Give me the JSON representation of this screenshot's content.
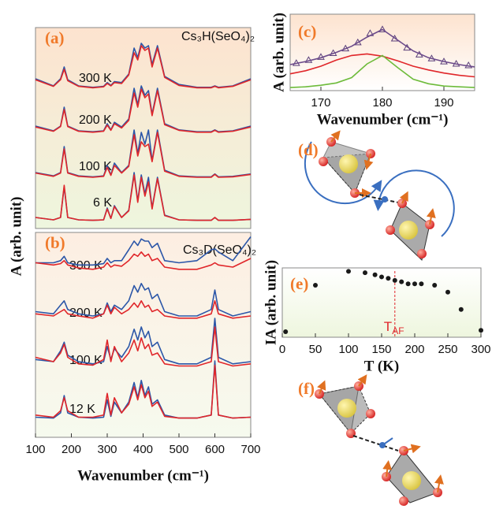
{
  "chart_data": [
    {
      "type": "line",
      "label": "(a)",
      "annotation": "Cs₃H(SeO₄)₂",
      "ylabel": "A (arb. unit)",
      "xlim": [
        100,
        700
      ],
      "x": [
        100,
        150,
        170,
        180,
        190,
        220,
        260,
        290,
        300,
        310,
        320,
        340,
        360,
        375,
        385,
        395,
        405,
        415,
        425,
        440,
        460,
        500,
        550,
        590,
        600,
        610,
        650,
        700
      ],
      "groups": [
        {
          "label": "300 K",
          "series": [
            {
              "color": "#2b56a8",
              "values": [
                0.3,
                0.15,
                0.3,
                0.55,
                0.28,
                0.15,
                0.12,
                0.14,
                0.22,
                0.16,
                0.24,
                0.22,
                0.4,
                0.95,
                0.75,
                1.05,
                0.95,
                1.0,
                0.6,
                1.0,
                0.35,
                0.18,
                0.12,
                0.12,
                0.15,
                0.12,
                0.15,
                0.3
              ]
            },
            {
              "color": "#e0262a",
              "values": [
                0.28,
                0.14,
                0.28,
                0.5,
                0.26,
                0.14,
                0.11,
                0.13,
                0.2,
                0.15,
                0.22,
                0.2,
                0.38,
                0.85,
                0.7,
                1.0,
                0.9,
                0.95,
                0.55,
                0.95,
                0.33,
                0.16,
                0.11,
                0.11,
                0.14,
                0.11,
                0.14,
                0.28
              ]
            }
          ]
        },
        {
          "label": "200 K",
          "series": [
            {
              "color": "#2b56a8",
              "values": [
                0.2,
                0.1,
                0.2,
                0.6,
                0.2,
                0.1,
                0.08,
                0.1,
                0.25,
                0.12,
                0.28,
                0.18,
                0.35,
                1.0,
                0.65,
                1.05,
                0.85,
                0.95,
                0.45,
                1.0,
                0.25,
                0.12,
                0.08,
                0.08,
                0.12,
                0.08,
                0.1,
                0.2
              ]
            },
            {
              "color": "#e0262a",
              "values": [
                0.18,
                0.09,
                0.19,
                0.55,
                0.19,
                0.09,
                0.07,
                0.09,
                0.22,
                0.11,
                0.25,
                0.16,
                0.32,
                0.9,
                0.6,
                0.98,
                0.8,
                0.88,
                0.42,
                0.95,
                0.23,
                0.11,
                0.07,
                0.07,
                0.11,
                0.07,
                0.09,
                0.18
              ]
            }
          ]
        },
        {
          "label": "100 K",
          "series": [
            {
              "color": "#2b56a8",
              "values": [
                0.15,
                0.08,
                0.15,
                0.7,
                0.15,
                0.08,
                0.06,
                0.08,
                0.3,
                0.1,
                0.35,
                0.15,
                0.3,
                1.05,
                0.55,
                1.0,
                0.75,
                1.05,
                0.4,
                1.05,
                0.2,
                0.08,
                0.06,
                0.06,
                0.12,
                0.06,
                0.07,
                0.12
              ]
            },
            {
              "color": "#e0262a",
              "values": [
                0.14,
                0.07,
                0.14,
                0.65,
                0.14,
                0.07,
                0.05,
                0.07,
                0.26,
                0.09,
                0.3,
                0.14,
                0.28,
                0.95,
                0.5,
                0.8,
                0.7,
                0.75,
                0.38,
                1.0,
                0.18,
                0.07,
                0.05,
                0.05,
                0.11,
                0.05,
                0.06,
                0.11
              ]
            }
          ]
        },
        {
          "label": "6 K",
          "series": [
            {
              "color": "#2b56a8",
              "values": [
                0.1,
                0.05,
                0.1,
                0.75,
                0.1,
                0.05,
                0.04,
                0.05,
                0.3,
                0.08,
                0.35,
                0.1,
                0.25,
                1.05,
                0.45,
                1.0,
                0.6,
                0.95,
                0.3,
                0.95,
                0.15,
                0.05,
                0.04,
                0.04,
                0.1,
                0.04,
                0.04,
                0.06
              ]
            },
            {
              "color": "#e0262a",
              "values": [
                0.1,
                0.05,
                0.1,
                0.78,
                0.1,
                0.05,
                0.04,
                0.05,
                0.28,
                0.08,
                0.33,
                0.1,
                0.24,
                1.0,
                0.42,
                0.95,
                0.55,
                0.85,
                0.28,
                0.92,
                0.14,
                0.05,
                0.04,
                0.04,
                0.1,
                0.04,
                0.04,
                0.06
              ]
            }
          ]
        }
      ]
    },
    {
      "type": "line",
      "label": "(b)",
      "annotation": "Cs₃D(SeO₄)₂",
      "xlabel": "Wavenumber (cm⁻¹)",
      "xlim": [
        100,
        700
      ],
      "xticks": [
        100,
        200,
        300,
        400,
        500,
        600,
        700
      ],
      "x": [
        100,
        150,
        170,
        180,
        190,
        220,
        260,
        290,
        300,
        310,
        320,
        340,
        360,
        375,
        385,
        395,
        405,
        415,
        425,
        440,
        460,
        500,
        550,
        590,
        600,
        610,
        650,
        700
      ],
      "groups": [
        {
          "label": "300 K",
          "series": [
            {
              "color": "#2b56a8",
              "values": [
                0.3,
                0.3,
                0.35,
                0.45,
                0.3,
                0.25,
                0.25,
                0.28,
                0.4,
                0.3,
                0.35,
                0.35,
                0.6,
                0.8,
                0.7,
                0.85,
                0.8,
                0.8,
                0.65,
                0.75,
                0.35,
                0.3,
                0.35,
                0.6,
                0.62,
                0.55,
                0.35,
                0.9
              ]
            },
            {
              "color": "#e0262a",
              "values": [
                0.3,
                0.25,
                0.28,
                0.35,
                0.25,
                0.18,
                0.15,
                0.2,
                0.3,
                0.2,
                0.25,
                0.22,
                0.35,
                0.5,
                0.45,
                0.55,
                0.45,
                0.5,
                0.35,
                0.4,
                0.2,
                0.15,
                0.15,
                0.25,
                0.3,
                0.25,
                0.2,
                0.4
              ]
            }
          ]
        },
        {
          "label": "200 K",
          "series": [
            {
              "color": "#2b56a8",
              "values": [
                0.3,
                0.25,
                0.45,
                0.55,
                0.35,
                0.25,
                0.2,
                0.25,
                0.5,
                0.3,
                0.45,
                0.35,
                0.55,
                0.9,
                0.75,
                0.95,
                0.8,
                0.85,
                0.6,
                0.7,
                0.3,
                0.2,
                0.2,
                0.35,
                0.8,
                0.35,
                0.2,
                0.3
              ]
            },
            {
              "color": "#e0262a",
              "values": [
                0.25,
                0.2,
                0.3,
                0.35,
                0.25,
                0.2,
                0.15,
                0.25,
                0.45,
                0.25,
                0.4,
                0.25,
                0.35,
                0.5,
                0.4,
                0.55,
                0.4,
                0.45,
                0.3,
                0.35,
                0.2,
                0.15,
                0.15,
                0.25,
                0.55,
                0.25,
                0.15,
                0.2
              ]
            }
          ]
        },
        {
          "label": "100 K",
          "series": [
            {
              "color": "#2b56a8",
              "values": [
                0.25,
                0.2,
                0.45,
                0.65,
                0.35,
                0.2,
                0.15,
                0.2,
                0.55,
                0.25,
                0.5,
                0.3,
                0.55,
                0.95,
                0.7,
                1.0,
                0.75,
                0.9,
                0.55,
                0.65,
                0.25,
                0.15,
                0.15,
                0.3,
                1.2,
                0.3,
                0.15,
                0.2
              ]
            },
            {
              "color": "#e0262a",
              "values": [
                0.3,
                0.2,
                0.4,
                0.6,
                0.3,
                0.15,
                0.12,
                0.25,
                0.7,
                0.2,
                0.55,
                0.2,
                0.4,
                0.7,
                0.45,
                0.75,
                0.5,
                0.6,
                0.35,
                0.4,
                0.15,
                0.1,
                0.1,
                0.2,
                1.0,
                0.2,
                0.1,
                0.15
              ]
            }
          ]
        },
        {
          "label": "12 K",
          "series": [
            {
              "color": "#2b56a8",
              "values": [
                0.1,
                0.08,
                0.2,
                0.6,
                0.2,
                0.1,
                0.08,
                0.1,
                0.5,
                0.12,
                0.45,
                0.2,
                0.45,
                0.9,
                0.55,
                0.95,
                0.6,
                0.8,
                0.4,
                0.5,
                0.15,
                0.08,
                0.08,
                0.15,
                1.4,
                0.15,
                0.08,
                0.1
              ]
            },
            {
              "color": "#e0262a",
              "values": [
                0.15,
                0.1,
                0.25,
                0.55,
                0.25,
                0.1,
                0.1,
                0.15,
                0.65,
                0.15,
                0.55,
                0.2,
                0.4,
                0.8,
                0.5,
                0.85,
                0.55,
                0.7,
                0.35,
                0.45,
                0.12,
                0.08,
                0.08,
                0.15,
                1.3,
                0.15,
                0.08,
                0.1
              ]
            }
          ]
        }
      ]
    },
    {
      "type": "line",
      "label": "(c)",
      "xlabel": "Wavenumber (cm⁻¹)",
      "ylabel": "A (arb. unit)",
      "xlim": [
        165,
        195
      ],
      "xticks": [
        170,
        180,
        190
      ],
      "ylim": [
        0,
        1
      ],
      "series": [
        {
          "color": "#5a3f7a",
          "marker": "triangle",
          "x": [
            166,
            168,
            170,
            172,
            174,
            176,
            178,
            180,
            182,
            184,
            186,
            188,
            190,
            192,
            194
          ],
          "values": [
            0.36,
            0.4,
            0.44,
            0.49,
            0.55,
            0.63,
            0.75,
            0.8,
            0.68,
            0.56,
            0.47,
            0.42,
            0.38,
            0.35,
            0.33
          ]
        },
        {
          "color": "#6b4a8a",
          "x": [
            165,
            167.5,
            170,
            172.5,
            175,
            177.5,
            180,
            182.5,
            185,
            187.5,
            190,
            192.5,
            195
          ],
          "values": [
            0.34,
            0.38,
            0.43,
            0.5,
            0.58,
            0.7,
            0.8,
            0.66,
            0.52,
            0.43,
            0.38,
            0.34,
            0.31
          ]
        },
        {
          "color": "#e0262a",
          "x": [
            165,
            167.5,
            170,
            172.5,
            175,
            177.5,
            180,
            182.5,
            185,
            187.5,
            190,
            192.5,
            195
          ],
          "values": [
            0.22,
            0.26,
            0.32,
            0.4,
            0.46,
            0.48,
            0.45,
            0.39,
            0.32,
            0.27,
            0.23,
            0.2,
            0.18
          ]
        },
        {
          "color": "#6dbb3a",
          "x": [
            165,
            167.5,
            170,
            172.5,
            175,
            177.5,
            180,
            182.5,
            185,
            187.5,
            190,
            192.5,
            195
          ],
          "values": [
            0.04,
            0.05,
            0.07,
            0.1,
            0.17,
            0.35,
            0.46,
            0.3,
            0.15,
            0.09,
            0.06,
            0.05,
            0.04
          ]
        }
      ]
    },
    {
      "type": "scatter",
      "label": "(e)",
      "xlabel": "T (K)",
      "ylabel": "IA (arb. unit)",
      "xlim": [
        0,
        300
      ],
      "xticks": [
        0,
        50,
        100,
        150,
        200,
        250,
        300
      ],
      "ylim": [
        0,
        1
      ],
      "color": "#1a1a1a",
      "x": [
        5,
        50,
        100,
        125,
        140,
        150,
        160,
        170,
        180,
        190,
        200,
        210,
        230,
        250,
        270,
        300
      ],
      "values": [
        0.08,
        0.75,
        0.95,
        0.93,
        0.9,
        0.87,
        0.85,
        0.82,
        0.8,
        0.77,
        0.77,
        0.77,
        0.75,
        0.65,
        0.4,
        0.1
      ],
      "marker_line": {
        "x": 170,
        "color": "#e0262a",
        "label": "T",
        "label_sub": "AF"
      }
    }
  ],
  "diagrams": [
    {
      "label": "(d)"
    },
    {
      "label": "(f)"
    }
  ]
}
